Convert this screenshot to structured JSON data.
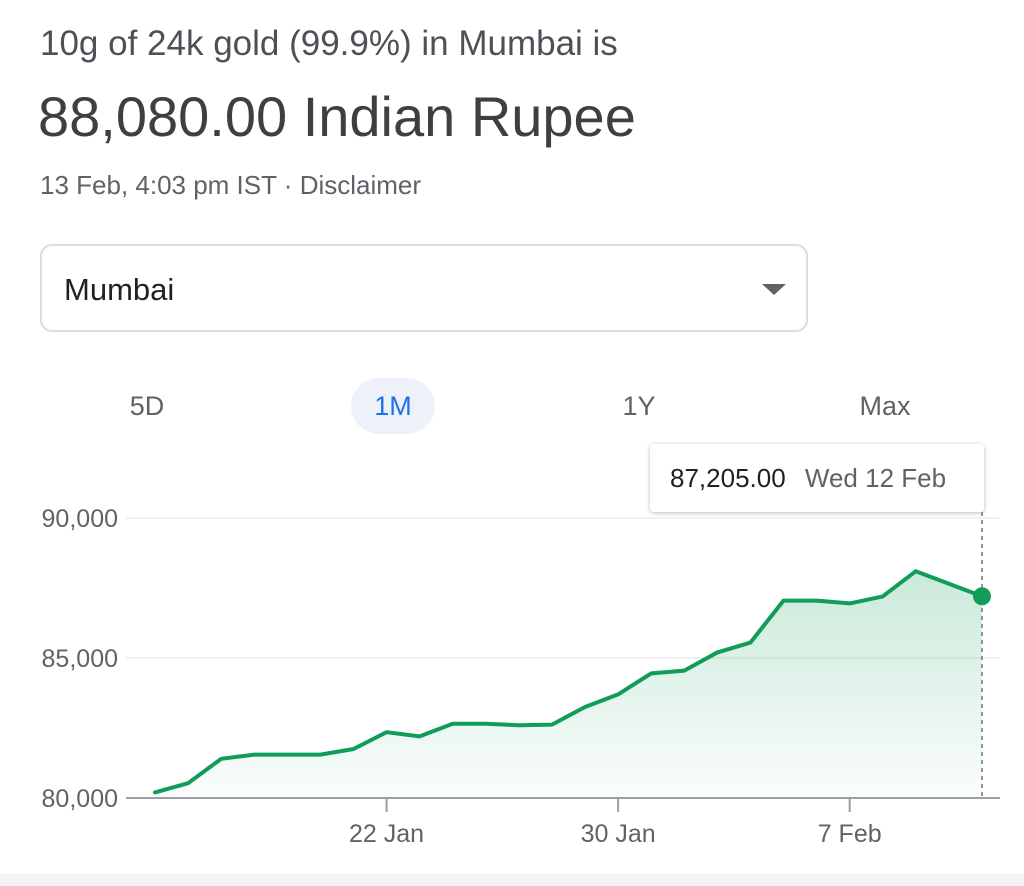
{
  "header": {
    "subtitle": "10g of 24k gold (99.9%) in Mumbai is",
    "price": "88,080.00 Indian Rupee",
    "timestamp": "13 Feb, 4:03 pm IST",
    "separator": "·",
    "disclaimer": "Disclaimer"
  },
  "city_select": {
    "value": "Mumbai"
  },
  "range_tabs": [
    {
      "label": "5D",
      "active": false
    },
    {
      "label": "1M",
      "active": true
    },
    {
      "label": "1Y",
      "active": false
    },
    {
      "label": "Max",
      "active": false
    }
  ],
  "tooltip": {
    "value": "87,205.00",
    "date": "Wed 12 Feb"
  },
  "colors": {
    "line": "#0f9d58",
    "active_tab": "#1a73e8"
  },
  "chart_data": {
    "type": "area",
    "ylim": [
      80000,
      90000
    ],
    "y_ticks": [
      {
        "value": 90000,
        "label": "90,000"
      },
      {
        "value": 85000,
        "label": "85,000"
      },
      {
        "value": 80000,
        "label": "80,000"
      }
    ],
    "x_ticks": [
      {
        "index": 7,
        "label": "22 Jan"
      },
      {
        "index": 14,
        "label": "30 Jan"
      },
      {
        "index": 21,
        "label": "7 Feb"
      }
    ],
    "series": [
      {
        "values": [
          80200,
          80530,
          81400,
          81550,
          81550,
          81550,
          81750,
          82350,
          82200,
          82650,
          82650,
          82600,
          82620,
          83250,
          83700,
          84450,
          84550,
          85200,
          85550,
          87050,
          87050,
          86950,
          87200,
          88100,
          87650,
          87205
        ]
      }
    ],
    "highlight_index": 25
  }
}
